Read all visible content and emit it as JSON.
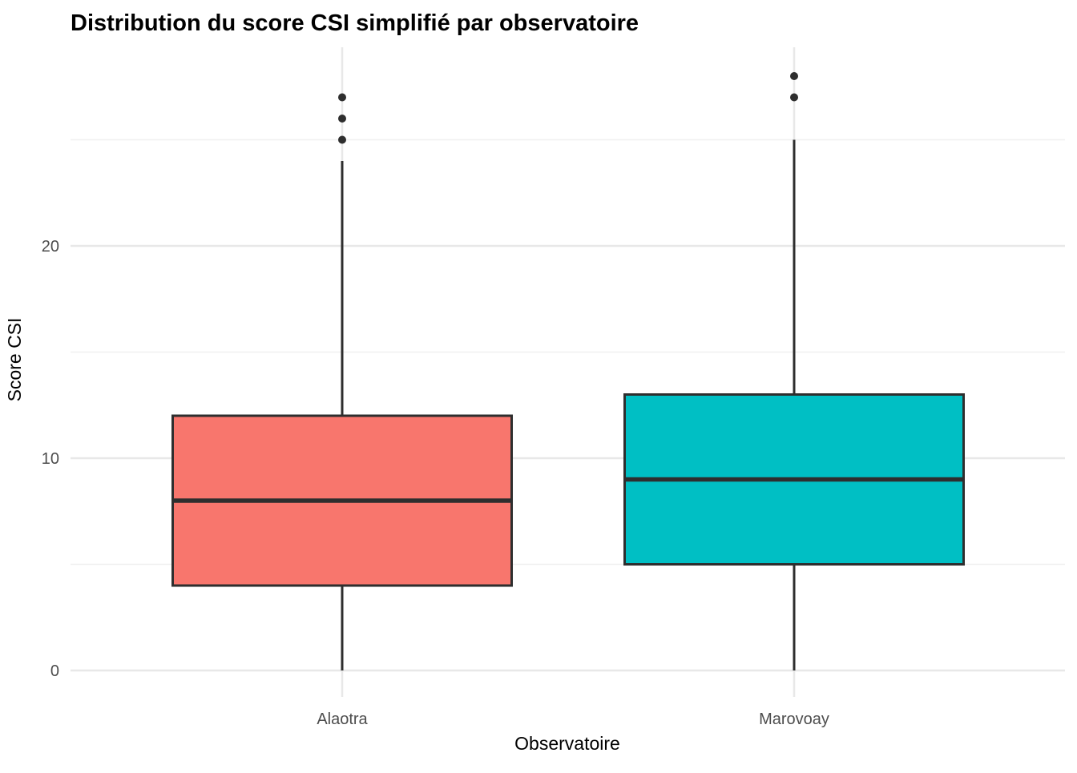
{
  "chart_data": {
    "type": "boxplot",
    "title": "Distribution du score CSI simplifié par observatoire",
    "xlabel": "Observatoire",
    "ylabel": "Score CSI",
    "ylim": [
      -1.4,
      29.4
    ],
    "yticks": [
      {
        "value": 0,
        "label": "0"
      },
      {
        "value": 10,
        "label": "10"
      },
      {
        "value": 20,
        "label": "20"
      }
    ],
    "y_minor_gridlines": [
      5,
      15,
      25
    ],
    "grid": true,
    "legend": "none",
    "categories": [
      "Alaotra",
      "Marovoay"
    ],
    "series": [
      {
        "name": "Alaotra",
        "color": "#F8766D",
        "lower_whisker": 0,
        "q1": 4,
        "median": 8,
        "q3": 12,
        "upper_whisker": 24,
        "outliers": [
          25,
          26,
          27
        ]
      },
      {
        "name": "Marovoay",
        "color": "#00BFC4",
        "lower_whisker": 0,
        "q1": 5,
        "median": 9,
        "q3": 13,
        "upper_whisker": 25,
        "outliers": [
          27,
          28
        ]
      }
    ],
    "theme": {
      "background_color": "#FFFFFF",
      "grid_major_color": "#E8E8E8",
      "grid_minor_color": "#F0F0F0",
      "box_stroke_color": "#2E2E2E",
      "outlier_color": "#2E2E2E",
      "tick_text_color": "#4D4D4D",
      "title_color": "#000000"
    }
  }
}
